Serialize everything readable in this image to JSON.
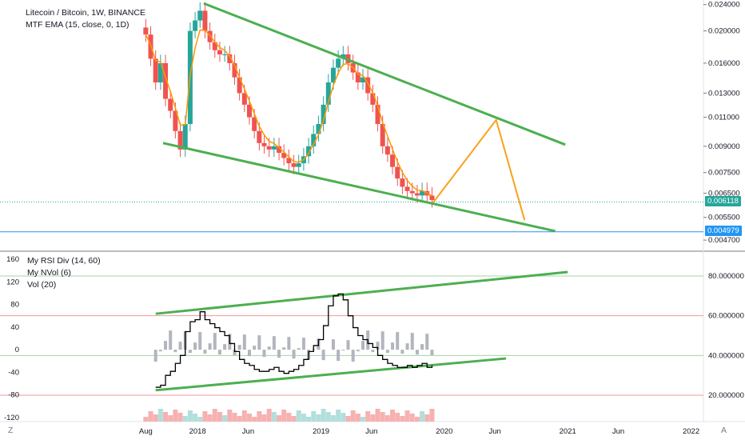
{
  "header": {
    "title": "Litecoin / Bitcoin, 1W, BINANCE",
    "indicator": "MTF EMA (15, close, 0, 1D)"
  },
  "lower_pane": {
    "indicators": [
      "My RSI Div (14, 60)",
      "My NVol (6)",
      "Vol (20)"
    ]
  },
  "price_badges": {
    "current": "0.006118",
    "line": "0.004979"
  },
  "footer": {
    "left_label": "Z",
    "right_label": "A"
  },
  "colors": {
    "up": "#26a69a",
    "down": "#ef5350",
    "ema": "#ff9800",
    "trendline": "#4caf50",
    "arrow": "#f7a21b",
    "rsi": "#000000",
    "current_badge": "#26a69a",
    "line_badge": "#2196f3"
  },
  "chart_data": [
    {
      "type": "line",
      "pane": "price",
      "x_ticks": [
        "Aug",
        "2018",
        "Jun",
        "2019",
        "Jun",
        "2020",
        "Jun",
        "2021",
        "Jun",
        "2022"
      ],
      "y_ticks": [
        "0.024000",
        "0.020000",
        "0.016000",
        "0.013000",
        "0.011000",
        "0.009000",
        "0.007500",
        "0.006500",
        "0.005500",
        "0.004700"
      ],
      "scale": "log",
      "ylim": [
        0.0046,
        0.0245
      ],
      "series": [
        {
          "type": "candlestick_close_approx",
          "x": [
            2017.58,
            2017.62,
            2017.66,
            2017.7,
            2017.74,
            2017.78,
            2017.82,
            2017.86,
            2017.9,
            2017.94,
            2017.98,
            2018.02,
            2018.06,
            2018.1,
            2018.14,
            2018.18,
            2018.22,
            2018.26,
            2018.3,
            2018.34,
            2018.38,
            2018.42,
            2018.46,
            2018.5,
            2018.54,
            2018.58,
            2018.62,
            2018.66,
            2018.7,
            2018.74,
            2018.78,
            2018.82,
            2018.86,
            2018.9,
            2018.94,
            2018.98,
            2019.02,
            2019.06,
            2019.1,
            2019.14,
            2019.18,
            2019.22,
            2019.26,
            2019.3,
            2019.34,
            2019.38,
            2019.42,
            2019.46,
            2019.5,
            2019.54,
            2019.58,
            2019.62,
            2019.66,
            2019.7,
            2019.74,
            2019.78,
            2019.82,
            2019.86,
            2019.9
          ],
          "values": [
            0.0195,
            0.0165,
            0.014,
            0.016,
            0.0125,
            0.0115,
            0.01,
            0.0088,
            0.0105,
            0.02,
            0.0215,
            0.023,
            0.02,
            0.0185,
            0.0175,
            0.017,
            0.017,
            0.016,
            0.0145,
            0.013,
            0.012,
            0.011,
            0.01,
            0.0092,
            0.009,
            0.0088,
            0.009,
            0.0086,
            0.0083,
            0.008,
            0.0078,
            0.008,
            0.0084,
            0.009,
            0.0098,
            0.0105,
            0.012,
            0.014,
            0.0155,
            0.0165,
            0.017,
            0.016,
            0.015,
            0.014,
            0.0145,
            0.013,
            0.012,
            0.0105,
            0.009,
            0.0085,
            0.0078,
            0.0072,
            0.0068,
            0.0066,
            0.0065,
            0.0064,
            0.0066,
            0.0064,
            0.0062
          ]
        }
      ],
      "annotations": {
        "current_price": 0.006118,
        "horizontal_line": 0.004979
      }
    },
    {
      "type": "line",
      "pane": "rsi",
      "left_ticks": [
        "160",
        "120",
        "80",
        "40",
        "0",
        "-40",
        "-80",
        "-120"
      ],
      "right_ticks": [
        "80.000000",
        "60.000000",
        "40.000000",
        "20.000000"
      ],
      "series": [
        {
          "name": "My RSI Div",
          "x": [
            2017.66,
            2017.7,
            2017.74,
            2017.78,
            2017.82,
            2017.86,
            2017.9,
            2017.94,
            2017.98,
            2018.02,
            2018.06,
            2018.1,
            2018.14,
            2018.18,
            2018.22,
            2018.26,
            2018.3,
            2018.34,
            2018.38,
            2018.42,
            2018.46,
            2018.5,
            2018.54,
            2018.58,
            2018.62,
            2018.66,
            2018.7,
            2018.74,
            2018.78,
            2018.82,
            2018.86,
            2018.9,
            2018.94,
            2018.98,
            2019.02,
            2019.06,
            2019.1,
            2019.14,
            2019.18,
            2019.22,
            2019.26,
            2019.3,
            2019.34,
            2019.38,
            2019.42,
            2019.46,
            2019.5,
            2019.54,
            2019.58,
            2019.62,
            2019.66,
            2019.7,
            2019.74,
            2019.78,
            2019.82,
            2019.86,
            2019.9
          ],
          "values": [
            24,
            25,
            30,
            32,
            36,
            40,
            52,
            57,
            58,
            62,
            58,
            56,
            54,
            52,
            50,
            46,
            42,
            38,
            36,
            35,
            33,
            32,
            32,
            33,
            34,
            32,
            31,
            32,
            33,
            35,
            38,
            42,
            45,
            48,
            55,
            65,
            70,
            71,
            68,
            60,
            54,
            50,
            48,
            46,
            44,
            40,
            38,
            36,
            35,
            34,
            34,
            35,
            34,
            35,
            36,
            34,
            35
          ]
        }
      ]
    }
  ]
}
